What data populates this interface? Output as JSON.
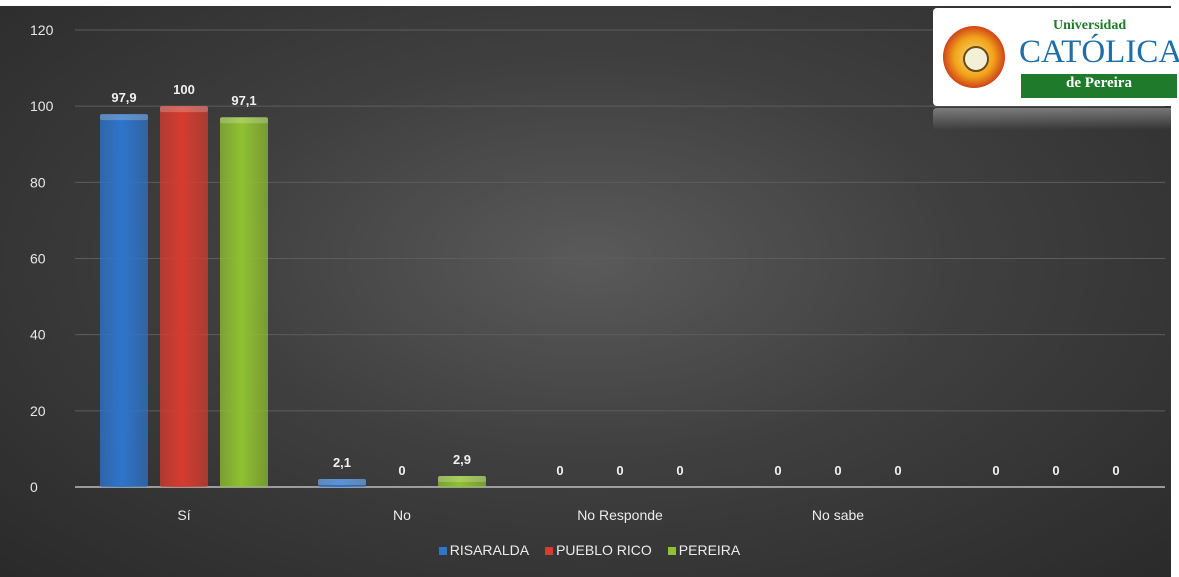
{
  "chart_data": {
    "type": "bar",
    "categories": [
      "Sí",
      "No",
      "No Responde",
      "No sabe",
      ""
    ],
    "series": [
      {
        "name": "RISARALDA",
        "values": [
          97.9,
          2.1,
          0,
          0,
          0
        ],
        "labels": [
          "97,9",
          "2,1",
          "0",
          "0",
          "0"
        ],
        "color": "#2e75cc"
      },
      {
        "name": "PUEBLO RICO",
        "values": [
          100,
          0,
          0,
          0,
          0
        ],
        "labels": [
          "100",
          "0",
          "0",
          "0",
          "0"
        ],
        "color": "#d63c2f"
      },
      {
        "name": "PEREIRA",
        "values": [
          97.1,
          2.9,
          0,
          0,
          0
        ],
        "labels": [
          "97,1",
          "2,9",
          "0",
          "0",
          "0"
        ],
        "color": "#8fc131"
      }
    ],
    "yticks": [
      "0",
      "20",
      "40",
      "60",
      "80",
      "100",
      "120"
    ],
    "ylim": [
      0,
      120
    ],
    "grid": true,
    "legend": "bottom-center"
  },
  "logo": {
    "top": "Universidad",
    "mid": "CATÓLICA",
    "bottom": "de Pereira"
  }
}
